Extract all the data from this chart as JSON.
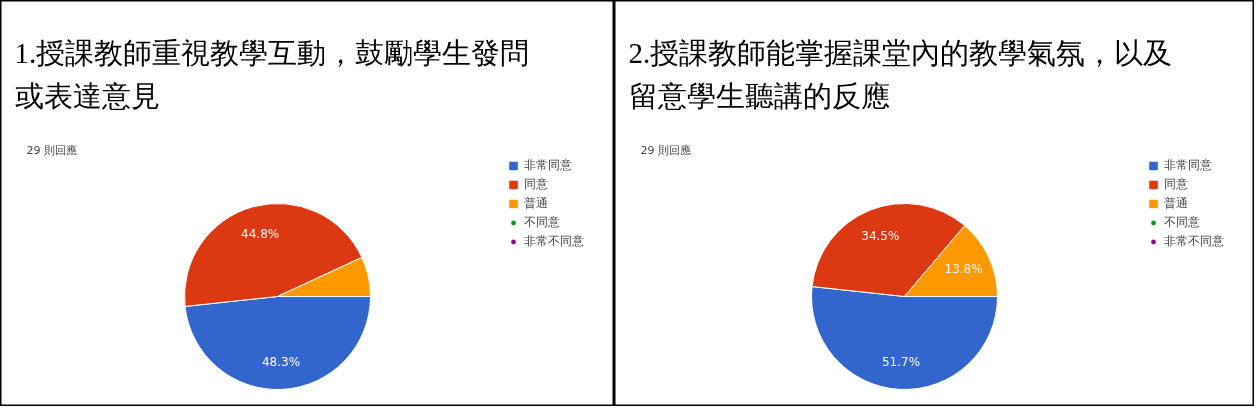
{
  "chart_data": [
    {
      "type": "pie",
      "title": "1.授課教師重視教學互動，鼓勵學生發問或表達意見",
      "annotations": [
        "29 則回應"
      ],
      "categories": [
        "非常同意",
        "同意",
        "普通",
        "不同意",
        "非常不同意"
      ],
      "values": [
        48.3,
        44.8,
        6.9,
        0,
        0
      ],
      "colors": [
        "#3366cc",
        "#dc3912",
        "#ff9900",
        "#109618",
        "#990099"
      ],
      "value_labels": [
        "48.3%",
        "44.8%",
        null,
        null,
        null
      ],
      "legend": "right"
    },
    {
      "type": "pie",
      "title": "2.授課教師能掌握課堂內的教學氣氛，以及留意學生聽講的反應",
      "annotations": [
        "29 則回應"
      ],
      "categories": [
        "非常同意",
        "同意",
        "普通",
        "不同意",
        "非常不同意"
      ],
      "values": [
        51.7,
        34.5,
        13.8,
        0,
        0
      ],
      "colors": [
        "#3366cc",
        "#dc3912",
        "#ff9900",
        "#109618",
        "#990099"
      ],
      "value_labels": [
        "51.7%",
        "34.5%",
        "13.8%",
        null,
        null
      ],
      "legend": "right"
    }
  ]
}
